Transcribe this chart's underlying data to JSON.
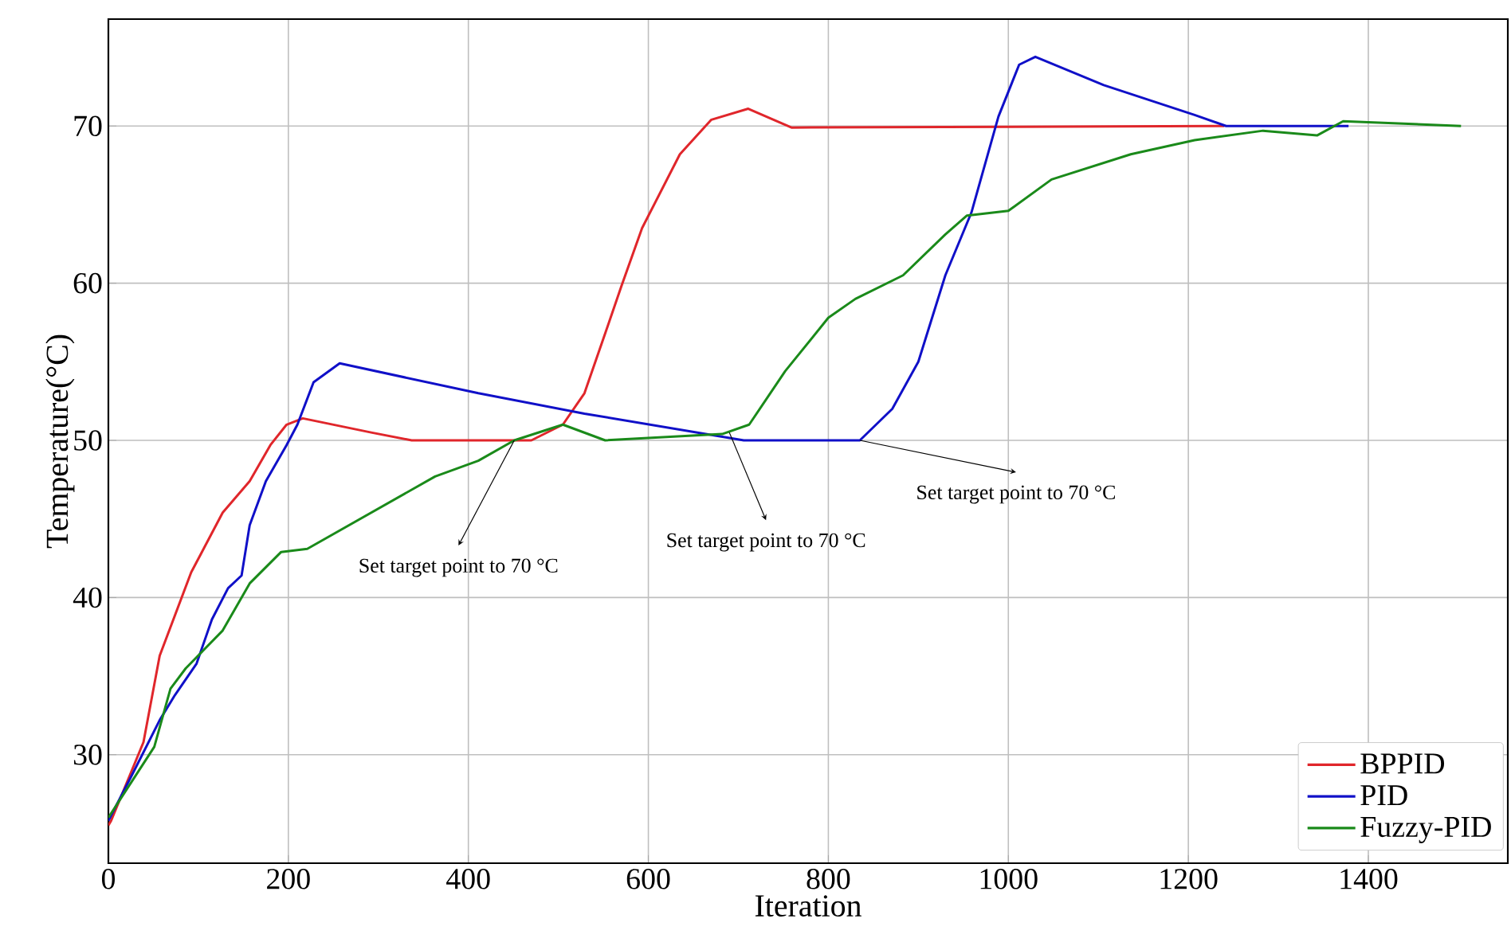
{
  "chart_data": {
    "type": "line",
    "xlabel": "Iteration",
    "ylabel": "Temperature(°C)",
    "xlim": [
      0,
      1555
    ],
    "ylim": [
      23.1,
      76.8
    ],
    "xticks": [
      0,
      200,
      400,
      600,
      800,
      1000,
      1200,
      1400
    ],
    "yticks": [
      30,
      40,
      50,
      60,
      70
    ],
    "grid": true,
    "legend": "bottom right",
    "line_style": "solid",
    "marker": "none",
    "series": [
      {
        "name": "BPPID",
        "color": "#e0262b",
        "x": [
          0,
          3,
          39,
          57,
          92,
          127,
          157,
          180,
          198,
          216,
          292,
          337,
          470,
          505,
          529,
          552,
          570,
          593,
          635,
          670,
          711,
          759,
          1240
        ],
        "values": [
          25.5,
          25.8,
          30.8,
          36.3,
          41.6,
          45.4,
          47.4,
          49.7,
          51.0,
          51.4,
          50.5,
          50.0,
          50.0,
          51.0,
          53.0,
          56.8,
          59.8,
          63.5,
          68.2,
          70.4,
          71.1,
          69.9,
          70.0
        ]
      },
      {
        "name": "PID",
        "color": "#1010c8",
        "x": [
          0,
          27,
          57,
          74,
          98,
          115,
          133,
          148,
          157,
          175,
          198,
          210,
          228,
          257,
          411,
          529,
          706,
          835,
          871,
          900,
          930,
          959,
          989,
          1012,
          1030,
          1106,
          1207,
          1242,
          1378
        ],
        "values": [
          25.8,
          28.8,
          32.2,
          33.8,
          35.8,
          38.6,
          40.6,
          41.4,
          44.6,
          47.4,
          49.7,
          51.0,
          53.7,
          54.9,
          53.0,
          51.7,
          50.0,
          50.0,
          52.0,
          55.0,
          60.5,
          64.5,
          70.6,
          73.9,
          74.4,
          72.6,
          70.7,
          70.0,
          70.0
        ]
      },
      {
        "name": "Fuzzy-PID",
        "color": "#1a8a1a",
        "x": [
          0,
          51,
          69,
          86,
          127,
          157,
          192,
          221,
          292,
          363,
          411,
          451,
          505,
          552,
          682,
          712,
          752,
          800,
          830,
          883,
          930,
          954,
          1000,
          1048,
          1136,
          1207,
          1283,
          1343,
          1372,
          1503
        ],
        "values": [
          26.0,
          30.5,
          34.2,
          35.5,
          37.9,
          40.9,
          42.9,
          43.1,
          45.4,
          47.7,
          48.7,
          50.0,
          51.0,
          50.0,
          50.4,
          51.0,
          54.4,
          57.8,
          59.0,
          60.5,
          63.1,
          64.3,
          64.6,
          66.6,
          68.2,
          69.1,
          69.7,
          69.4,
          70.3,
          70.0
        ]
      }
    ],
    "annotations": [
      {
        "text": "Set target point to 70 °C",
        "x": 451,
        "y": 50
      },
      {
        "text": "Set target point to 70 °C",
        "x": 690,
        "y": 50.5
      },
      {
        "text": "Set target point to 70 °C",
        "x": 835,
        "y": 50
      }
    ]
  }
}
